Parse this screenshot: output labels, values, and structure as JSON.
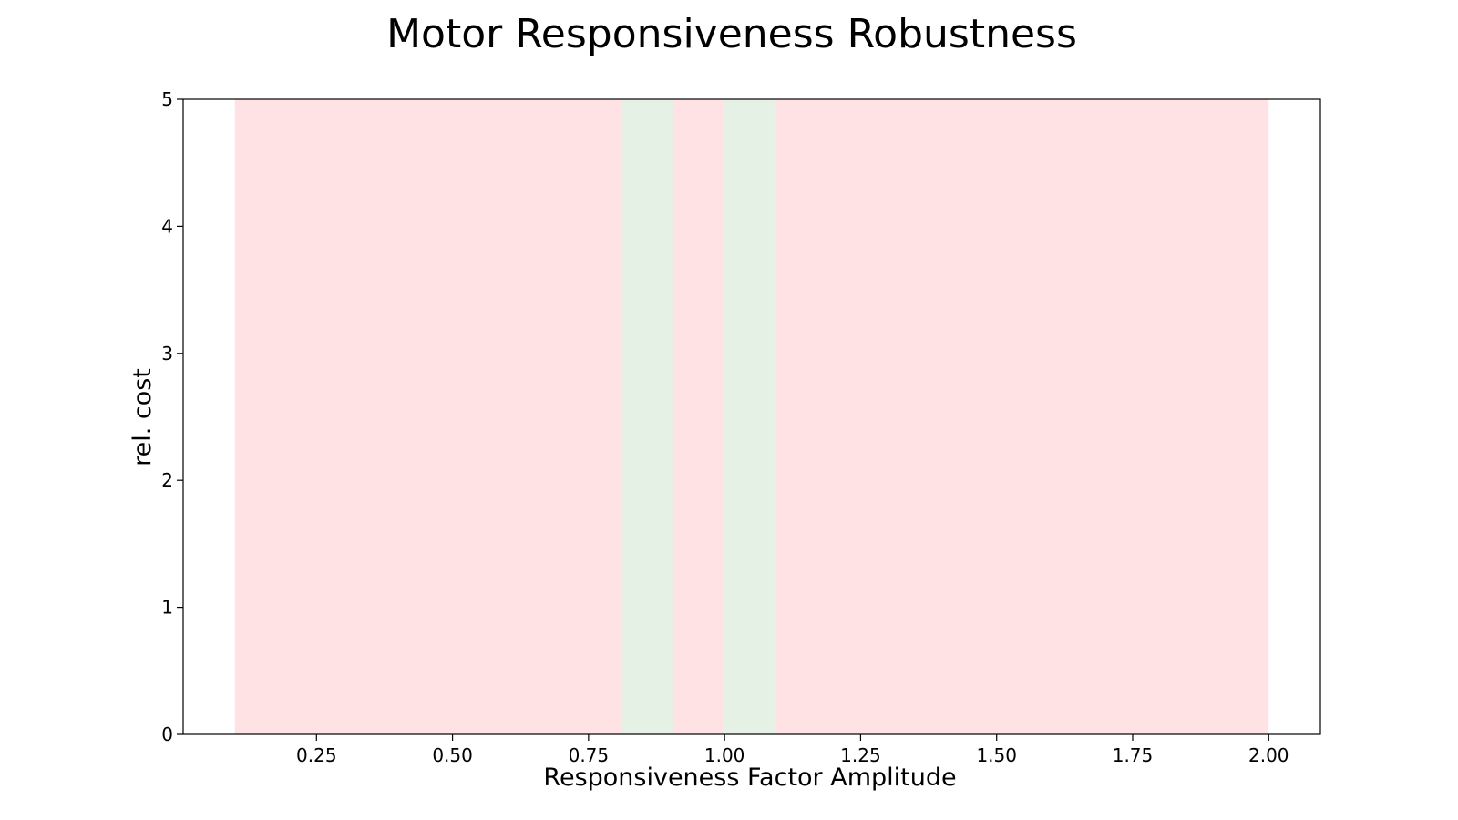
{
  "chart_data": {
    "type": "bar",
    "title": "Motor Responsiveness Robustness",
    "xlabel": "Responsiveness Factor Amplitude",
    "ylabel": "rel. cost",
    "xlim": [
      0.005,
      2.095
    ],
    "ylim": [
      0,
      5
    ],
    "xticks": [
      0.25,
      0.5,
      0.75,
      1.0,
      1.25,
      1.5,
      1.75,
      2.0
    ],
    "xtick_labels": [
      "0.25",
      "0.50",
      "0.75",
      "1.00",
      "1.25",
      "1.50",
      "1.75",
      "2.00"
    ],
    "yticks": [
      0,
      1,
      2,
      3,
      4,
      5
    ],
    "ytick_labels": [
      "0",
      "1",
      "2",
      "3",
      "4",
      "5"
    ],
    "grid": false,
    "legend": "none",
    "colors": {
      "fail": "#ffe2e4",
      "success": "#e5f1e4",
      "axes": "#000000"
    },
    "regions": [
      {
        "x_start": 0.1,
        "x_end": 0.81,
        "status": "fail"
      },
      {
        "x_start": 0.81,
        "x_end": 0.905,
        "status": "success"
      },
      {
        "x_start": 0.905,
        "x_end": 1.0,
        "status": "fail"
      },
      {
        "x_start": 1.0,
        "x_end": 1.095,
        "status": "success"
      },
      {
        "x_start": 1.095,
        "x_end": 2.0,
        "status": "fail"
      }
    ]
  }
}
